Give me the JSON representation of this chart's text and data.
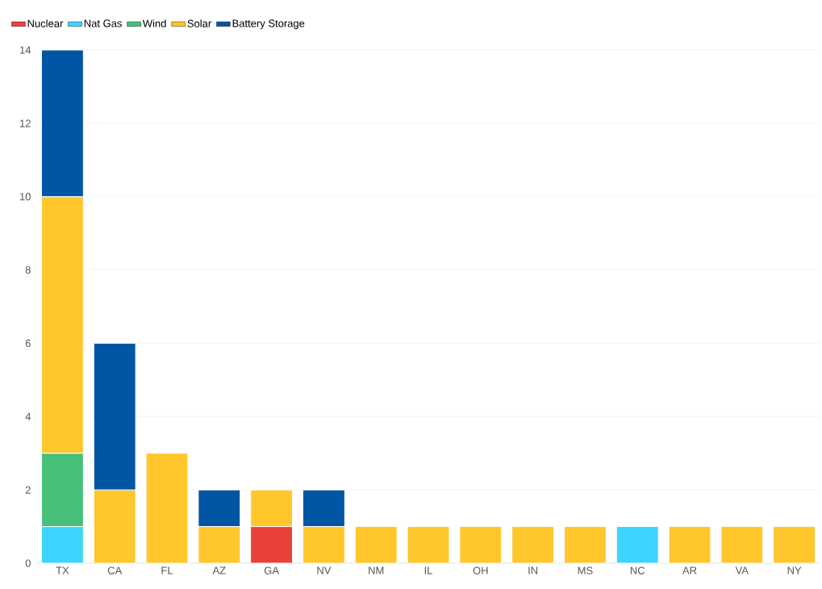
{
  "chart_data": {
    "type": "bar",
    "stacked": true,
    "categories": [
      "TX",
      "CA",
      "FL",
      "AZ",
      "GA",
      "NV",
      "NM",
      "IL",
      "OH",
      "IN",
      "MS",
      "NC",
      "AR",
      "VA",
      "NY"
    ],
    "series": [
      {
        "name": "Nuclear",
        "color": "#e8413c",
        "values": [
          null,
          null,
          null,
          null,
          1,
          null,
          null,
          null,
          null,
          null,
          null,
          null,
          null,
          null,
          null
        ]
      },
      {
        "name": "Nat Gas",
        "color": "#3fd4fd",
        "values": [
          1,
          null,
          null,
          null,
          null,
          null,
          null,
          null,
          null,
          null,
          null,
          1,
          null,
          null,
          null
        ]
      },
      {
        "name": "Wind",
        "color": "#47c07a",
        "values": [
          2,
          null,
          null,
          null,
          null,
          null,
          null,
          null,
          null,
          null,
          null,
          null,
          null,
          null,
          null
        ]
      },
      {
        "name": "Solar",
        "color": "#ffc72c",
        "values": [
          7,
          2,
          3,
          1,
          1,
          1,
          1,
          1,
          1,
          1,
          1,
          null,
          1,
          1,
          1
        ]
      },
      {
        "name": "Battery Storage",
        "color": "#0055a5",
        "values": [
          4,
          4,
          null,
          1,
          null,
          1,
          null,
          null,
          null,
          null,
          null,
          null,
          null,
          null,
          null
        ]
      }
    ],
    "ylim": [
      0,
      14
    ],
    "yticks": [
      0,
      2,
      4,
      6,
      8,
      10,
      12,
      14
    ],
    "grid": "y",
    "legend": "top left"
  }
}
